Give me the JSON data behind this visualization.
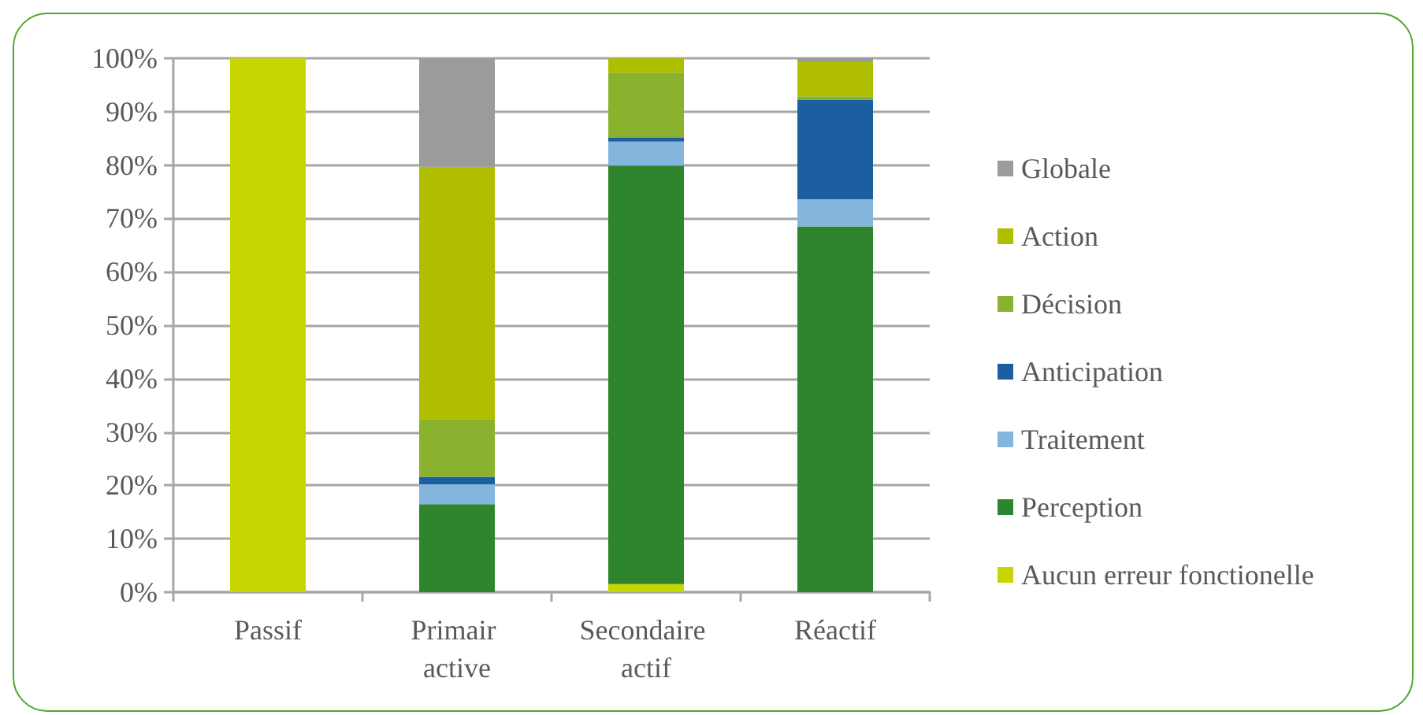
{
  "chart_data": {
    "type": "bar",
    "stacked": true,
    "categories": [
      "Passif",
      "Primair active",
      "Secondaire actif",
      "Réactif"
    ],
    "series": [
      {
        "name": "Aucun erreur fonctionelle",
        "color": "#c6d600",
        "values": [
          100,
          null,
          1.5,
          null
        ]
      },
      {
        "name": "Perception",
        "color": "#2e852e",
        "values": [
          null,
          16.5,
          78.4,
          68.5
        ]
      },
      {
        "name": "Traitement",
        "color": "#84b5dc",
        "values": [
          null,
          3.7,
          4.5,
          5.1
        ]
      },
      {
        "name": "Anticipation",
        "color": "#1b5fa0",
        "values": [
          null,
          1.4,
          0.7,
          18.6
        ]
      },
      {
        "name": "Décision",
        "color": "#8ab22e",
        "values": [
          null,
          10.8,
          12.2,
          0.7
        ]
      },
      {
        "name": "Action",
        "color": "#afbf00",
        "values": [
          null,
          47.3,
          2.7,
          6.5
        ]
      },
      {
        "name": "Globale",
        "color": "#9b9b9b",
        "values": [
          null,
          20.3,
          null,
          0.6
        ]
      }
    ],
    "ylim": [
      0,
      100
    ],
    "yticks": [
      {
        "value": 0,
        "label": "0%"
      },
      {
        "value": 10,
        "label": "10%"
      },
      {
        "value": 20,
        "label": "20%"
      },
      {
        "value": 30,
        "label": "30%"
      },
      {
        "value": 40,
        "label": "40%"
      },
      {
        "value": 50,
        "label": "50%"
      },
      {
        "value": 60,
        "label": "60%"
      },
      {
        "value": 70,
        "label": "70%"
      },
      {
        "value": 80,
        "label": "80%"
      },
      {
        "value": 90,
        "label": "90%"
      },
      {
        "value": 100,
        "label": "100%"
      }
    ],
    "grid": "y",
    "legend": "right"
  }
}
